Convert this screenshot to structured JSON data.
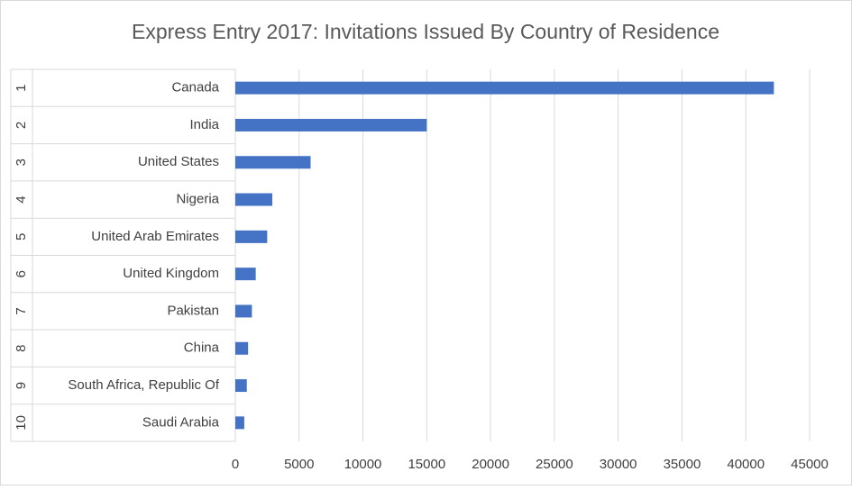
{
  "chart_data": {
    "type": "bar",
    "orientation": "horizontal",
    "title": "Express Entry 2017: Invitations Issued By Country of Residence",
    "ranks": [
      "1",
      "2",
      "3",
      "4",
      "5",
      "6",
      "7",
      "8",
      "9",
      "10"
    ],
    "categories": [
      "Canada",
      "India",
      "United States",
      "Nigeria",
      "United Arab Emirates",
      "United Kingdom",
      "Pakistan",
      "China",
      "South Africa, Republic Of",
      "Saudi Arabia"
    ],
    "values": [
      42200,
      15000,
      5900,
      2900,
      2500,
      1600,
      1300,
      1000,
      900,
      700
    ],
    "color": "#4472c4",
    "xlim": [
      0,
      45000
    ],
    "xticks": [
      0,
      5000,
      10000,
      15000,
      20000,
      25000,
      30000,
      35000,
      40000,
      45000
    ],
    "grid": true
  }
}
